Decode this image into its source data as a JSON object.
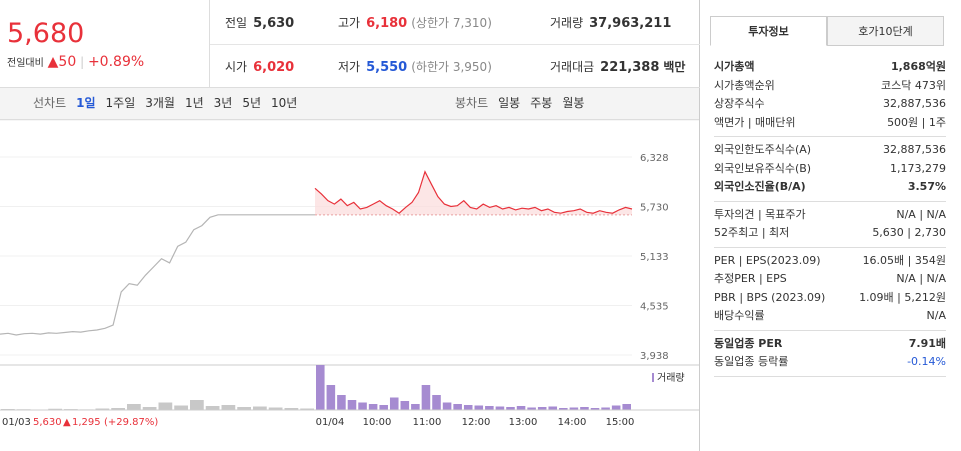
{
  "quote": {
    "price": "5,680",
    "change_label": "전일대비",
    "change": "50",
    "change_pct": "+0.89%"
  },
  "stats": [
    {
      "label": "전일",
      "value": "5,630"
    },
    {
      "label": "고가",
      "value": "6,180",
      "note": "(상한가 7,310)"
    },
    {
      "label": "거래량",
      "value": "37,963,211"
    },
    {
      "label": "시가",
      "value": "6,020"
    },
    {
      "label": "저가",
      "value": "5,550",
      "note": "(하한가 3,950)"
    },
    {
      "label": "거래대금",
      "value": "221,388",
      "unit": "백만"
    }
  ],
  "tabs": {
    "line_label": "선차트",
    "line_items": [
      "1일",
      "1주일",
      "3개월",
      "1년",
      "3년",
      "5년",
      "10년"
    ],
    "candle_label": "봉차트",
    "candle_items": [
      "일봉",
      "주봉",
      "월봉"
    ]
  },
  "chart_data": {
    "type": "line",
    "yticks": [
      {
        "value": 6328,
        "label": "6,328"
      },
      {
        "value": 5730,
        "label": "5,730"
      },
      {
        "value": 5133,
        "label": "5,133"
      },
      {
        "value": 4535,
        "label": "4,535"
      },
      {
        "value": 3938,
        "label": "3,938"
      }
    ],
    "ylim": [
      3938,
      6328
    ],
    "series": [
      {
        "color": "#b5b5b5",
        "values": [
          4190,
          4200,
          4180,
          4195,
          4200,
          4190,
          4205,
          4200,
          4210,
          4220,
          4215,
          4230,
          4240,
          4260,
          4300,
          4700,
          4800,
          4780,
          4900,
          5000,
          5100,
          5050,
          5250,
          5300,
          5450,
          5500,
          5600,
          5630,
          5630,
          5630,
          5630,
          5630,
          5630,
          5630,
          5630,
          5630,
          5630,
          5630,
          5630,
          5630
        ]
      },
      {
        "color": "#e8313a",
        "values": [
          5950,
          5880,
          5800,
          5760,
          5820,
          5740,
          5780,
          5700,
          5720,
          5760,
          5800,
          5740,
          5700,
          5650,
          5720,
          5780,
          5900,
          6150,
          6000,
          5850,
          5760,
          5730,
          5740,
          5800,
          5720,
          5700,
          5760,
          5720,
          5740,
          5700,
          5720,
          5690,
          5710,
          5700,
          5720,
          5680,
          5700,
          5660,
          5650,
          5670,
          5680,
          5700,
          5660,
          5650,
          5680,
          5660,
          5650,
          5690,
          5720,
          5700
        ]
      }
    ],
    "volume": {
      "name": "거래량",
      "colors": [
        "#c8c8c8",
        "#a68bd1"
      ],
      "values": [
        [
          20000,
          15000,
          10000,
          25000,
          18000,
          12000,
          30000,
          40000,
          120000,
          60000,
          150000,
          90000,
          200000,
          80000,
          100000,
          60000,
          70000,
          50000,
          40000,
          30000
        ],
        [
          900000,
          500000,
          300000,
          200000,
          150000,
          120000,
          100000,
          250000,
          180000,
          120000,
          500000,
          300000,
          150000,
          120000,
          100000,
          90000,
          80000,
          70000,
          60000,
          80000,
          50000,
          60000,
          70000,
          40000,
          50000,
          60000,
          40000,
          50000,
          90000,
          120000
        ]
      ]
    },
    "xlabels": [
      "01/04",
      "10:00",
      "11:00",
      "12:00",
      "13:00",
      "14:00",
      "15:00"
    ],
    "prev_day": {
      "date": "01/03",
      "close": "5,630",
      "change": "1,295",
      "change_pct": "(+29.87%)"
    }
  },
  "invest": {
    "tabs": [
      "투자정보",
      "호가10단계"
    ],
    "groups": [
      [
        {
          "label": "시가총액",
          "value": "1,868억원"
        },
        {
          "label": "시가총액순위",
          "value": "코스닥 473위"
        },
        {
          "label": "상장주식수",
          "value": "32,887,536"
        },
        {
          "label": "액면가 | 매매단위",
          "value": "500원 | 1주"
        }
      ],
      [
        {
          "label": "외국인한도주식수(A)",
          "value": "32,887,536"
        },
        {
          "label": "외국인보유주식수(B)",
          "value": "1,173,279"
        },
        {
          "label": "외국인소진율(B/A)",
          "value": "3.57%"
        }
      ],
      [
        {
          "label": "투자의견 | 목표주가",
          "value": "N/A | N/A"
        },
        {
          "label": "52주최고 | 최저",
          "value": "5,630 | 2,730"
        }
      ],
      [
        {
          "label": "PER | EPS(2023.09)",
          "value": "16.05배 | 354원"
        },
        {
          "label": "추정PER | EPS",
          "value": "N/A | N/A"
        },
        {
          "label": "PBR | BPS (2023.09)",
          "value": "1.09배 | 5,212원"
        },
        {
          "label": "배당수익률",
          "value": "N/A"
        }
      ],
      [
        {
          "label": "동일업종 PER",
          "value": "7.91배"
        },
        {
          "label": "동일업종 등락률",
          "value": "-0.14%"
        }
      ]
    ]
  }
}
